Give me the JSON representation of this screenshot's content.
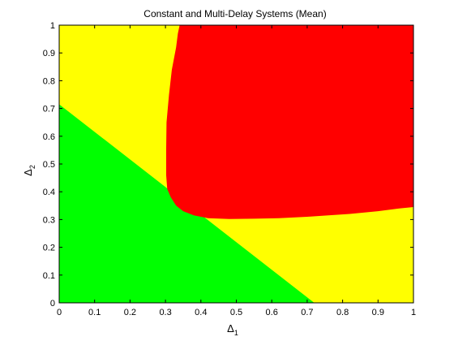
{
  "chart_data": {
    "type": "area",
    "title": "Constant and Multi-Delay Systems (Mean)",
    "xlabel": "Δ",
    "xlabel_sub": "1",
    "ylabel": "Δ",
    "ylabel_sub": "2",
    "xlim": [
      0,
      1
    ],
    "ylim": [
      0,
      1
    ],
    "xticks": [
      "0",
      "0.1",
      "0.2",
      "0.3",
      "0.4",
      "0.5",
      "0.6",
      "0.7",
      "0.8",
      "0.9",
      "1"
    ],
    "yticks": [
      "0",
      "0.1",
      "0.2",
      "0.3",
      "0.4",
      "0.5",
      "0.6",
      "0.7",
      "0.8",
      "0.9",
      "1"
    ],
    "grid": false,
    "background_region": {
      "color": "#ffff00"
    },
    "regions": [
      {
        "id": "green",
        "color": "#00ff00",
        "polygon": [
          [
            0,
            0
          ],
          [
            0.72,
            0
          ],
          [
            0,
            0.715
          ]
        ]
      },
      {
        "id": "red",
        "color": "#ff0000",
        "polygon": [
          [
            0.34,
            1.0
          ],
          [
            1.0,
            1.0
          ],
          [
            1.0,
            0.345
          ],
          [
            0.96,
            0.34
          ],
          [
            0.9,
            0.33
          ],
          [
            0.82,
            0.32
          ],
          [
            0.76,
            0.315
          ],
          [
            0.7,
            0.31
          ],
          [
            0.62,
            0.305
          ],
          [
            0.55,
            0.303
          ],
          [
            0.48,
            0.302
          ],
          [
            0.42,
            0.305
          ],
          [
            0.38,
            0.315
          ],
          [
            0.35,
            0.33
          ],
          [
            0.33,
            0.35
          ],
          [
            0.315,
            0.38
          ],
          [
            0.305,
            0.41
          ],
          [
            0.302,
            0.46
          ],
          [
            0.302,
            0.55
          ],
          [
            0.303,
            0.65
          ],
          [
            0.31,
            0.75
          ],
          [
            0.318,
            0.84
          ],
          [
            0.33,
            0.92
          ],
          [
            0.335,
            0.97
          ]
        ]
      }
    ]
  }
}
